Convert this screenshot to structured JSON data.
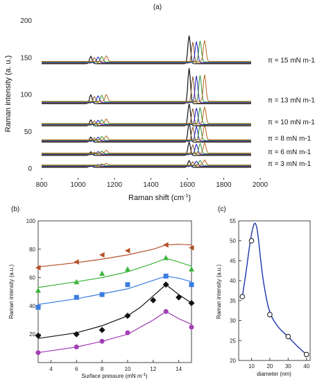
{
  "chart_data": [
    {
      "panel": "(a)",
      "type": "line",
      "xlabel": "Raman shift (cm-1)",
      "ylabel": "Raman intensity (a. u.)",
      "xlim": [
        800,
        2000
      ],
      "ylim": [
        0,
        200
      ],
      "xticks": [
        "800",
        "1000",
        "1200",
        "1400",
        "1600",
        "1800",
        "2000"
      ],
      "yticks": [
        "0",
        "50",
        "100",
        "150",
        "200"
      ],
      "series_colors": [
        "#111111",
        "#8b5a2b",
        "#1a1acc",
        "#2f8f2f",
        "#b5651d"
      ],
      "spectra": [
        {
          "label": "π = 3 mN m-1",
          "baseline": 2,
          "peaks": [
            {
              "x": 1070,
              "h": 3
            },
            {
              "x": 1610,
              "h": 9
            }
          ]
        },
        {
          "label": "π = 6 mN m-1",
          "baseline": 18,
          "peaks": [
            {
              "x": 1070,
              "h": 5
            },
            {
              "x": 1610,
              "h": 18
            }
          ]
        },
        {
          "label": "π = 8 mN m-1",
          "baseline": 36,
          "peaks": [
            {
              "x": 1070,
              "h": 7
            },
            {
              "x": 1610,
              "h": 26
            }
          ]
        },
        {
          "label": "π = 10 mN m-1",
          "baseline": 58,
          "peaks": [
            {
              "x": 1070,
              "h": 8
            },
            {
              "x": 1610,
              "h": 30
            }
          ]
        },
        {
          "label": "π = 13 mN m-1",
          "baseline": 88,
          "peaks": [
            {
              "x": 1070,
              "h": 12
            },
            {
              "x": 1610,
              "h": 48
            }
          ]
        },
        {
          "label": "π = 15 mN m-1",
          "baseline": 142,
          "peaks": [
            {
              "x": 1070,
              "h": 10
            },
            {
              "x": 1610,
              "h": 38
            }
          ]
        }
      ]
    },
    {
      "panel": "(b)",
      "type": "scatter",
      "xlabel": "Surface pressure (mN m-1)",
      "ylabel": "Raman intensity (a.u.)",
      "xlim": [
        3,
        15
      ],
      "ylim": [
        0,
        100
      ],
      "xticks": [
        "4",
        "6",
        "8",
        "10",
        "12",
        "14"
      ],
      "yticks": [
        "20",
        "40",
        "60",
        "80",
        "100"
      ],
      "x": [
        3,
        6,
        8,
        10,
        12,
        13,
        14,
        15
      ],
      "series": [
        {
          "marker": "triangle-left",
          "color": "#b5502a",
          "values": [
            67,
            71,
            76,
            79,
            null,
            83,
            null,
            81
          ],
          "fit": [
            [
              3,
              67.5
            ],
            [
              6,
              70.5
            ],
            [
              8,
              73
            ],
            [
              10,
              76
            ],
            [
              12,
              80
            ],
            [
              13,
              83
            ],
            [
              14,
              83.5
            ],
            [
              15,
              83
            ]
          ]
        },
        {
          "marker": "triangle",
          "color": "#3cb43c",
          "values": [
            51,
            57,
            63,
            66,
            null,
            74,
            null,
            66
          ],
          "fit": [
            [
              3,
              53
            ],
            [
              6,
              57
            ],
            [
              8,
              60
            ],
            [
              10,
              64
            ],
            [
              12,
              70
            ],
            [
              13,
              73.5
            ],
            [
              14,
              71
            ],
            [
              15,
              68
            ]
          ]
        },
        {
          "marker": "square",
          "color": "#3a7de0",
          "values": [
            39,
            46,
            48,
            55,
            null,
            61,
            null,
            55
          ],
          "fit": [
            [
              3,
              41
            ],
            [
              6,
              45
            ],
            [
              8,
              48.5
            ],
            [
              10,
              52
            ],
            [
              12,
              58
            ],
            [
              13,
              61
            ],
            [
              14,
              59.5
            ],
            [
              15,
              57
            ]
          ]
        },
        {
          "marker": "diamond",
          "color": "#111111",
          "values": [
            19,
            20,
            23,
            33,
            44,
            55,
            46,
            42
          ],
          "fit": [
            [
              3,
              17
            ],
            [
              6,
              21
            ],
            [
              8,
              26
            ],
            [
              10,
              33
            ],
            [
              11,
              39
            ],
            [
              12,
              47
            ],
            [
              13,
              55
            ],
            [
              14,
              48
            ],
            [
              15,
              42
            ]
          ]
        },
        {
          "marker": "circle",
          "color": "#a23fb5",
          "values": [
            7,
            11,
            15,
            21,
            null,
            36,
            null,
            25
          ],
          "fit": [
            [
              3,
              7
            ],
            [
              6,
              11
            ],
            [
              8,
              15
            ],
            [
              10,
              20
            ],
            [
              12,
              30
            ],
            [
              13,
              36
            ],
            [
              14,
              31
            ],
            [
              15,
              27
            ]
          ]
        }
      ]
    },
    {
      "panel": "(c)",
      "type": "scatter",
      "xlabel": "diameter (nm)",
      "ylabel": "Raman intensity (a.u.)",
      "xlim": [
        3,
        42
      ],
      "ylim": [
        20,
        55
      ],
      "xticks": [
        "10",
        "20",
        "30",
        "40"
      ],
      "yticks": [
        "20",
        "25",
        "30",
        "35",
        "40",
        "45",
        "50",
        "55"
      ],
      "points": [
        [
          5,
          36
        ],
        [
          10,
          50
        ],
        [
          20,
          31.5
        ],
        [
          30,
          26
        ],
        [
          40,
          21.5
        ]
      ],
      "fit": [
        [
          5,
          36
        ],
        [
          7,
          42
        ],
        [
          9,
          49
        ],
        [
          10.5,
          53
        ],
        [
          12,
          55
        ],
        [
          13.5,
          52
        ],
        [
          15,
          45
        ],
        [
          17,
          38
        ],
        [
          20,
          31.5
        ],
        [
          25,
          28
        ],
        [
          30,
          26
        ],
        [
          35,
          23.5
        ],
        [
          40,
          21.5
        ]
      ],
      "color": "#1a33aa"
    }
  ],
  "labels": {
    "a_panel": "(a)",
    "b_panel": "(b)",
    "c_panel": "(c)",
    "a_xlabel": "Raman shift (cm",
    "a_xlabel_sup": "-1",
    "a_xlabel_end": ")",
    "a_ylabel": "Raman intensity (a. u.)",
    "b_xlabel": "Surface pressure (mN m",
    "b_xlabel_sup": "-1",
    "b_xlabel_end": ")",
    "b_ylabel": "Raman intensity (a.u.)",
    "c_xlabel": "diameter (nm)",
    "c_ylabel": "Raman intensity (a.u.)"
  }
}
